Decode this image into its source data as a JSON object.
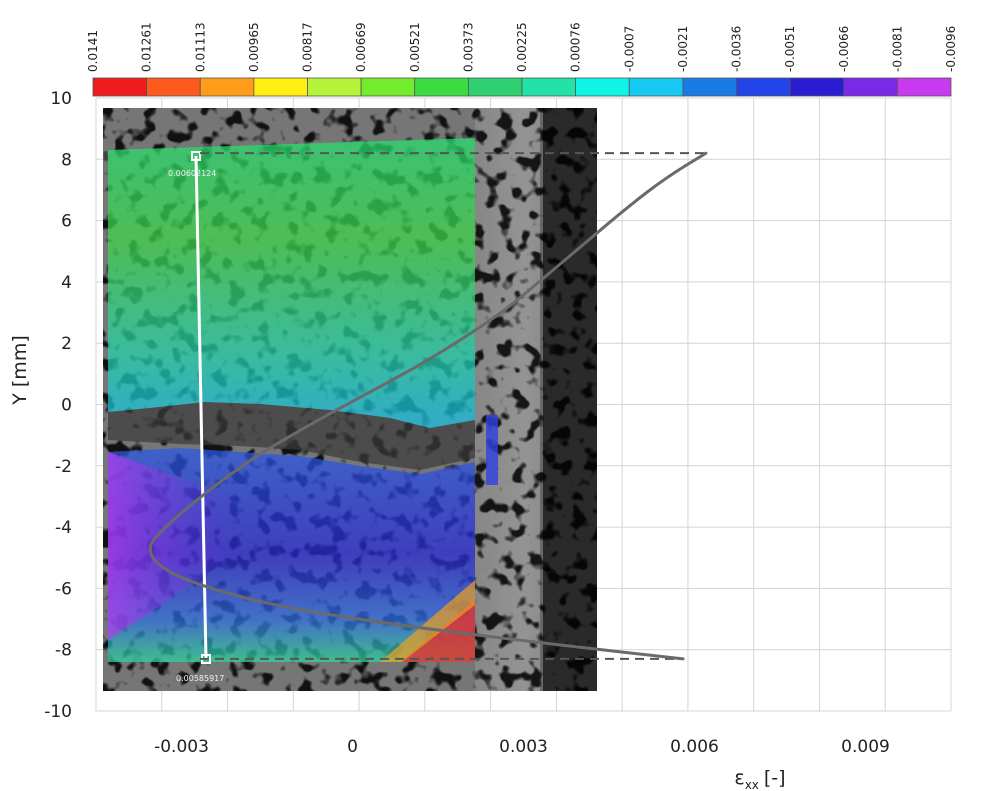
{
  "chart_data": {
    "type": "line",
    "ylabel": "Y [mm]",
    "xlabel": "εxx [-]",
    "xlabel_main": "ε",
    "xlabel_sub": "xx",
    "xlabel_unit": "[-]",
    "ylim": [
      -10,
      10
    ],
    "yticks": [
      "10",
      "8",
      "6",
      "4",
      "2",
      "0",
      "-2",
      "-4",
      "-6",
      "-8",
      "-10"
    ],
    "xlim": [
      -0.0045,
      0.0105
    ],
    "xticks": [
      {
        "label": "-0.003",
        "value": -0.003
      },
      {
        "label": "0",
        "value": 0
      },
      {
        "label": "0.003",
        "value": 0.003
      },
      {
        "label": "0.006",
        "value": 0.006
      },
      {
        "label": "0.009",
        "value": 0.009
      }
    ],
    "grid": true,
    "series": [
      {
        "color": "#6a6a6a",
        "points": [
          [
            0.0062,
            8.2
          ],
          [
            0.0055,
            7.4
          ],
          [
            0.0048,
            6.4
          ],
          [
            0.0041,
            5.3
          ],
          [
            0.0034,
            4.2
          ],
          [
            0.0027,
            3.1
          ],
          [
            0.0019,
            2.1
          ],
          [
            0.0011,
            1.2
          ],
          [
            0.0003,
            0.4
          ],
          [
            -0.0007,
            -0.6
          ],
          [
            -0.0018,
            -1.8
          ],
          [
            -0.0028,
            -3.2
          ],
          [
            -0.0034,
            -4.2
          ],
          [
            -0.0036,
            -4.7
          ],
          [
            -0.0034,
            -5.3
          ],
          [
            -0.0027,
            -5.9
          ],
          [
            -0.0013,
            -6.6
          ],
          [
            0.0008,
            -7.2
          ],
          [
            0.0034,
            -7.8
          ],
          [
            0.0058,
            -8.3
          ]
        ]
      }
    ],
    "guides": [
      8.2,
      -8.3
    ]
  },
  "colorbar": {
    "labels": [
      "0.0141",
      "0.01261",
      "0.01113",
      "0.00965",
      "0.00817",
      "0.00669",
      "0.00521",
      "0.00373",
      "0.00225",
      "0.00076",
      "-0.0007",
      "-0.0021",
      "-0.0036",
      "-0.0051",
      "-0.0066",
      "-0.0081",
      "-0.0096"
    ],
    "colors": [
      "#ee1c1c",
      "#ff5a1e",
      "#ff9d1a",
      "#ffee10",
      "#b5f23a",
      "#74ec2e",
      "#3bdc42",
      "#2ed072",
      "#22e2a8",
      "#10f4e6",
      "#16c9f0",
      "#1a7be6",
      "#2244e8",
      "#2a1cd2",
      "#7a2ae6",
      "#c83af0"
    ]
  },
  "dic_overlay": {
    "top_point_value": "0.00602124",
    "bottom_point_value": "0.00585917"
  }
}
